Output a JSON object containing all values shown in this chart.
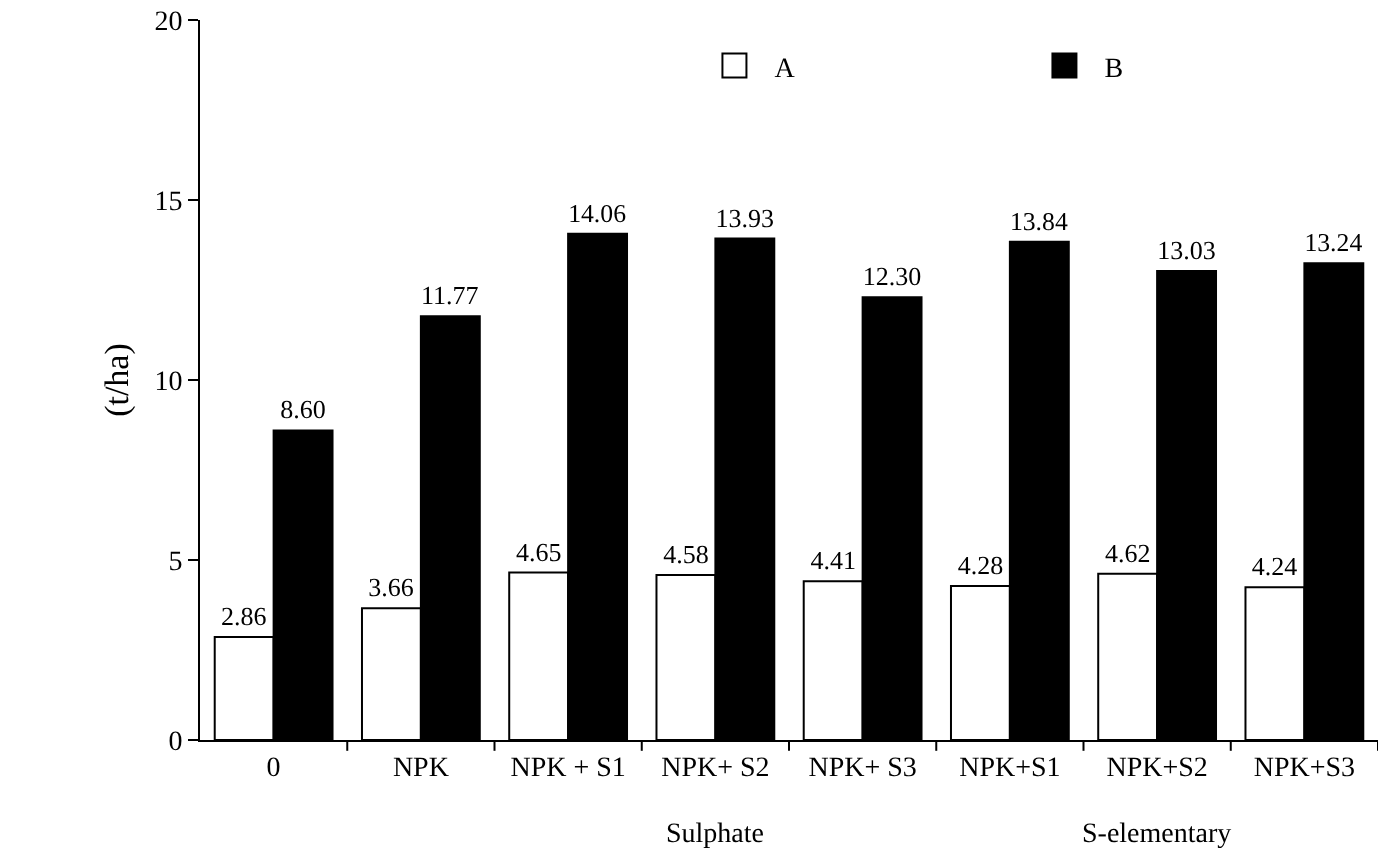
{
  "chart_data": {
    "type": "bar",
    "ylabel": "(t/ha)",
    "categories": [
      "0",
      "NPK",
      "NPK + S1",
      "NPK+ S2",
      "NPK+ S3",
      "NPK+S1",
      "NPK+S2",
      "NPK+S3"
    ],
    "series": [
      {
        "name": "A",
        "color": "#ffffff",
        "values": [
          2.86,
          3.66,
          4.65,
          4.58,
          4.41,
          4.28,
          4.62,
          4.24
        ]
      },
      {
        "name": "B",
        "color": "#000000",
        "values": [
          8.6,
          11.77,
          14.06,
          13.93,
          12.3,
          13.84,
          13.03,
          13.24
        ]
      }
    ],
    "value_labels": [
      [
        "2.86",
        "3.66",
        "4.65",
        "4.58",
        "4.41",
        "4.28",
        "4.62",
        "4.24"
      ],
      [
        "8.60",
        "11.77",
        "14.06",
        "13.93",
        "12.30",
        "13.84",
        "13.03",
        "13.24"
      ]
    ],
    "ylim": [
      0,
      20
    ],
    "yticks": [
      0,
      5,
      10,
      15,
      20
    ],
    "grid": false,
    "legend": "top right",
    "annotations": [
      "Sulphate",
      "S-elementary"
    ]
  }
}
